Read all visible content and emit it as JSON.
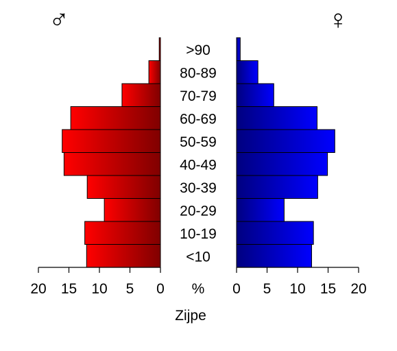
{
  "chart_data": {
    "type": "bar",
    "subtype": "population-pyramid",
    "xlabel": "Zijpe",
    "center_axis_label": "%",
    "categories": [
      "<10",
      "10-19",
      "20-29",
      "30-39",
      "40-49",
      "50-59",
      "60-69",
      "70-79",
      "80-89",
      ">90"
    ],
    "series": [
      {
        "symbol": "♂",
        "side": "left",
        "color_light": "#ff0000",
        "color_dark": "#800000",
        "values": [
          12.1,
          12.4,
          9.2,
          12.0,
          15.8,
          16.1,
          14.7,
          6.3,
          1.9,
          0.2
        ]
      },
      {
        "symbol": "♀",
        "side": "right",
        "color_light": "#0000ff",
        "color_dark": "#000080",
        "values": [
          12.3,
          12.6,
          7.8,
          13.3,
          14.9,
          16.1,
          13.2,
          6.1,
          3.5,
          0.6
        ]
      }
    ],
    "xlim": [
      0,
      20
    ],
    "ticks": [
      0,
      5,
      10,
      15,
      20
    ],
    "tick_labels": [
      "0",
      "5",
      "10",
      "15",
      "20"
    ],
    "grid": false,
    "legend": "symbols above each side"
  }
}
